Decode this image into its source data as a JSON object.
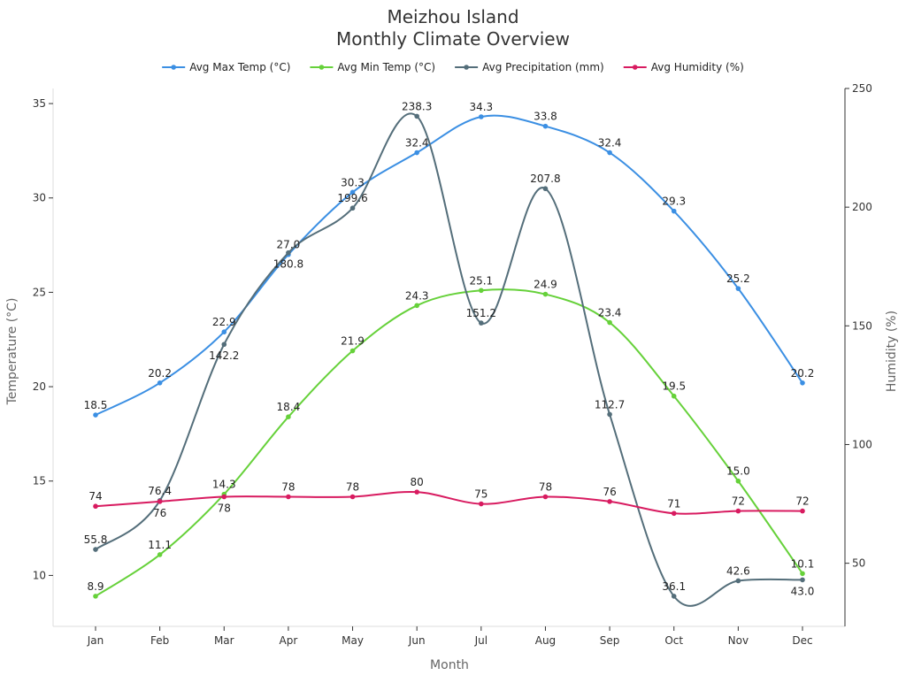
{
  "chart_data": {
    "type": "line",
    "title": "Meizhou Island",
    "subtitle": "Monthly Climate Overview",
    "xlabel": "Month",
    "ylabel": "Temperature (°C)",
    "ylabel_right": "Humidity (%)",
    "categories": [
      "Jan",
      "Feb",
      "Mar",
      "Apr",
      "May",
      "Jun",
      "Jul",
      "Aug",
      "Sep",
      "Oct",
      "Nov",
      "Dec"
    ],
    "ylim": [
      7.3,
      35.8
    ],
    "ylim_right": [
      23.4,
      250
    ],
    "yticks": [
      10,
      15,
      20,
      25,
      30,
      35
    ],
    "yticks_right": [
      50,
      100,
      150,
      200,
      250
    ],
    "grid": false,
    "legend_position": "top-right",
    "series": [
      {
        "name": "Avg Max Temp (°C)",
        "legend_lines": [
          "Avg Max",
          "Temp (°C)"
        ],
        "axis": "left",
        "color": "#3b8fe3",
        "values": [
          18.5,
          20.2,
          22.9,
          27.0,
          30.3,
          32.4,
          34.3,
          33.8,
          32.4,
          29.3,
          25.2,
          20.2
        ]
      },
      {
        "name": "Avg Min Temp (°C)",
        "legend_lines": [
          "Avg Min",
          "Temp (°C)"
        ],
        "axis": "left",
        "color": "#66d13a",
        "values": [
          8.9,
          11.1,
          14.3,
          18.4,
          21.9,
          24.3,
          25.1,
          24.9,
          23.4,
          19.5,
          15.0,
          10.1
        ]
      },
      {
        "name": "Avg Precipitation (mm)",
        "legend_lines": [
          "Avg",
          "Precipitation",
          "(mm)"
        ],
        "axis": "right",
        "color": "#546e7a",
        "values": [
          55.8,
          76.4,
          142.2,
          180.8,
          199.6,
          238.3,
          151.2,
          207.8,
          112.7,
          36.1,
          42.6,
          43.0
        ]
      },
      {
        "name": "Avg Humidity (%)",
        "legend_lines": [
          "Avg",
          "Humidity",
          "(%)"
        ],
        "axis": "right",
        "color": "#d81b60",
        "values": [
          74,
          76,
          78,
          78,
          78,
          80,
          75,
          78,
          76,
          71,
          72,
          72
        ]
      }
    ]
  }
}
